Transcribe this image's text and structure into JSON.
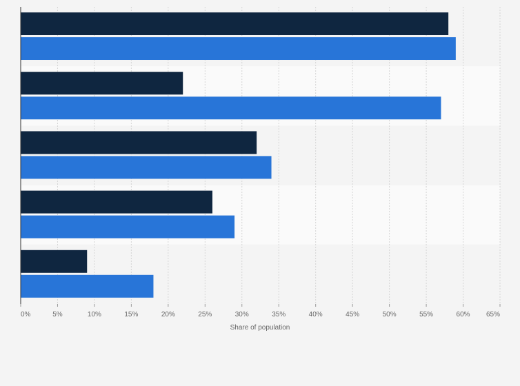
{
  "chart_data": {
    "type": "bar",
    "orientation": "horizontal",
    "categories": [
      "",
      "",
      "",
      "",
      ""
    ],
    "series": [
      {
        "values": [
          58,
          22,
          32,
          26,
          9
        ],
        "color": "#0f2640"
      },
      {
        "values": [
          59,
          57,
          34,
          29,
          18
        ],
        "color": "#2875d8"
      }
    ],
    "xlabel": "Share of population",
    "ylabel": "",
    "xlim": [
      0,
      65
    ],
    "ticks": [
      "0%",
      "5%",
      "10%",
      "15%",
      "20%",
      "25%",
      "30%",
      "35%",
      "40%",
      "45%",
      "50%",
      "55%",
      "60%",
      "65%"
    ],
    "tick_values": [
      0,
      5,
      10,
      15,
      20,
      25,
      30,
      35,
      40,
      45,
      50,
      55,
      60,
      65
    ],
    "grid": true,
    "legend": "none"
  }
}
